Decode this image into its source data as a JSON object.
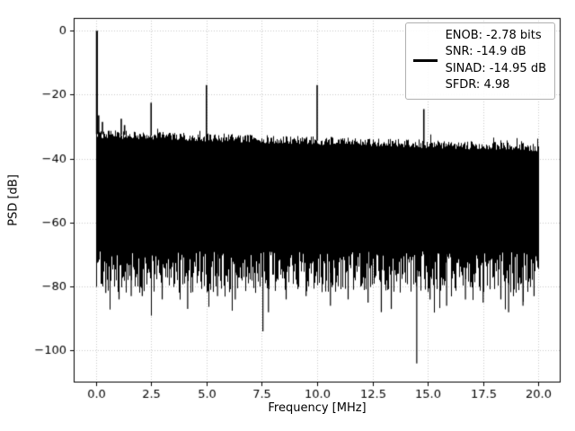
{
  "figure": {
    "xlabel": "Frequency [MHz]",
    "ylabel": "PSD [dB]"
  },
  "chart_data": {
    "type": "line",
    "title": "",
    "xlabel": "Frequency [MHz]",
    "ylabel": "PSD [dB]",
    "xlim": [
      -1,
      21
    ],
    "ylim": [
      -110,
      4
    ],
    "grid": true,
    "grid_color": "#c8c8c8",
    "line_color": "#000000",
    "x_ticks": {
      "values": [
        0,
        2.5,
        5,
        7.5,
        10,
        12.5,
        15,
        17.5,
        20
      ],
      "labels": [
        "0.0",
        "2.5",
        "5.0",
        "7.5",
        "10.0",
        "12.5",
        "15.0",
        "17.5",
        "20.0"
      ]
    },
    "y_ticks": {
      "values": [
        0,
        -20,
        -40,
        -60,
        -80,
        -100
      ],
      "labels": [
        "0",
        "−20",
        "−40",
        "−60",
        "−80",
        "−100"
      ]
    },
    "legend": {
      "position": "upper right",
      "entries": [
        "ENOB: -2.78 bits",
        "SNR: -14.9 dB",
        "SINAD: -14.95 dB",
        "SFDR: 4.98"
      ]
    },
    "signal_peaks": [
      {
        "x": 0.05,
        "y": 0.0
      },
      {
        "x": 0.13,
        "y": -26.5
      },
      {
        "x": 0.3,
        "y": -28.5
      },
      {
        "x": 1.15,
        "y": -27.5
      },
      {
        "x": 1.3,
        "y": -29.5
      },
      {
        "x": 2.5,
        "y": -22.5
      },
      {
        "x": 5.0,
        "y": -17.0
      },
      {
        "x": 10.0,
        "y": -17.0
      },
      {
        "x": 14.82,
        "y": -24.5
      }
    ],
    "noise_floor": {
      "seed": 42,
      "top_start_db": -32.3,
      "top_end_db": -36.5,
      "top_jitter_db": 2.6,
      "bottom_base_db": -69,
      "bottom_spread_db": 13,
      "deep_nulls": [
        {
          "x": 0.45,
          "y": -82
        },
        {
          "x": 1.05,
          "y": -84
        },
        {
          "x": 1.6,
          "y": -83
        },
        {
          "x": 2.1,
          "y": -83
        },
        {
          "x": 3.0,
          "y": -84
        },
        {
          "x": 4.15,
          "y": -87
        },
        {
          "x": 5.5,
          "y": -83
        },
        {
          "x": 6.3,
          "y": -84
        },
        {
          "x": 7.55,
          "y": -94
        },
        {
          "x": 7.8,
          "y": -88
        },
        {
          "x": 8.6,
          "y": -84
        },
        {
          "x": 9.5,
          "y": -83
        },
        {
          "x": 10.6,
          "y": -86
        },
        {
          "x": 11.4,
          "y": -84
        },
        {
          "x": 12.3,
          "y": -85
        },
        {
          "x": 12.9,
          "y": -88
        },
        {
          "x": 13.35,
          "y": -87
        },
        {
          "x": 14.5,
          "y": -104
        },
        {
          "x": 15.1,
          "y": -84
        },
        {
          "x": 15.85,
          "y": -86
        },
        {
          "x": 16.7,
          "y": -84
        },
        {
          "x": 17.5,
          "y": -85
        },
        {
          "x": 18.3,
          "y": -84
        },
        {
          "x": 18.65,
          "y": -88
        },
        {
          "x": 19.3,
          "y": -86
        },
        {
          "x": 19.8,
          "y": -83
        }
      ]
    }
  }
}
